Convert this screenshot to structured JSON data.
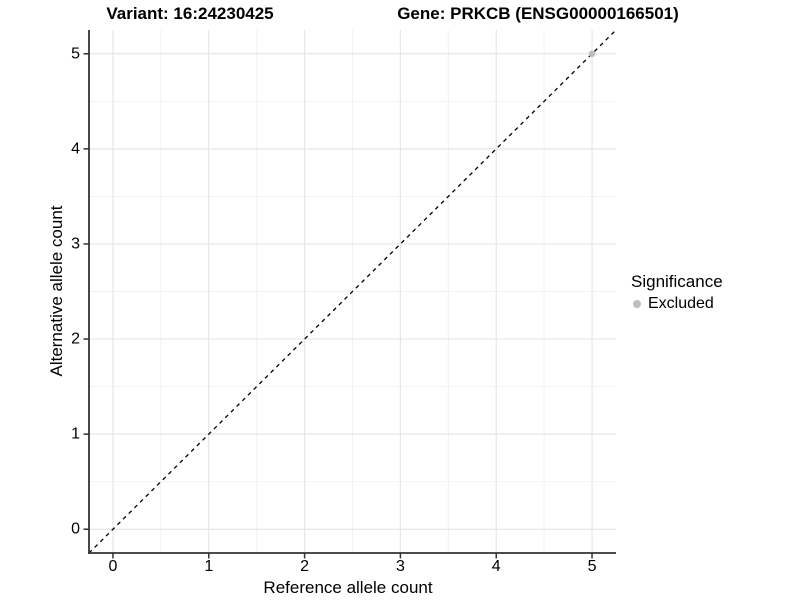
{
  "chart_data": {
    "type": "scatter",
    "titles": [
      "Variant: 16:24230425",
      "Gene: PRKCB (ENSG00000166501)"
    ],
    "xlabel": "Reference allele count",
    "ylabel": "Alternative allele count",
    "xlim": [
      -0.25,
      5.25
    ],
    "ylim": [
      -0.25,
      5.25
    ],
    "xticks": [
      0,
      1,
      2,
      3,
      4,
      5
    ],
    "yticks": [
      0,
      1,
      2,
      3,
      4,
      5
    ],
    "xminor": [
      0.5,
      1.5,
      2.5,
      3.5,
      4.5
    ],
    "yminor": [
      0.5,
      1.5,
      2.5,
      3.5,
      4.5
    ],
    "grid": true,
    "reference_line": {
      "type": "identity",
      "from": -0.25,
      "to": 5.25,
      "style": "dashed",
      "color": "#000000"
    },
    "series": [
      {
        "name": "Excluded",
        "color": "#bebebe",
        "points": [
          [
            5,
            5
          ]
        ]
      }
    ],
    "legend": {
      "title": "Significance",
      "position": "right",
      "items": [
        {
          "label": "Excluded",
          "color": "#bebebe"
        }
      ]
    }
  },
  "colors": {
    "background": "#ffffff",
    "grid_major": "#e6e6e6",
    "grid_minor": "#f2f2f2",
    "axis": "#333333",
    "text": "#000000",
    "point": "#bebebe",
    "dashed_line": "#000000"
  }
}
